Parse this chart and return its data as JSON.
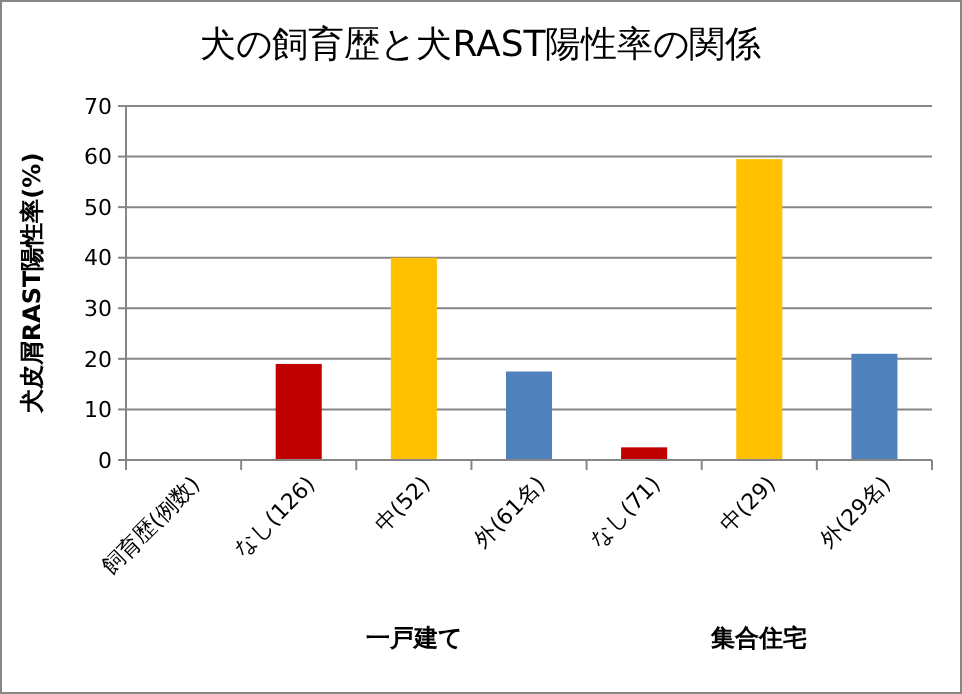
{
  "chart_data": {
    "type": "bar",
    "title": "犬の飼育歴と犬RAST陽性率の関係",
    "ylabel": "犬皮屑RAST陽性率(%)",
    "categories": [
      "飼育歴(例数)",
      "なし(126)",
      "中(52)",
      "外(61名)",
      "なし(71)",
      "中(29)",
      "外(29名)"
    ],
    "values": [
      null,
      19,
      40,
      17.5,
      2.5,
      59.5,
      21
    ],
    "colors": [
      null,
      "#c00000",
      "#ffc000",
      "#4f81bd",
      "#c00000",
      "#ffc000",
      "#4f81bd"
    ],
    "ylim": [
      0,
      70
    ],
    "yticks": [
      0,
      10,
      20,
      30,
      40,
      50,
      60,
      70
    ],
    "grid": "y",
    "annotations": [
      "一戸建て",
      "集合住宅"
    ]
  }
}
